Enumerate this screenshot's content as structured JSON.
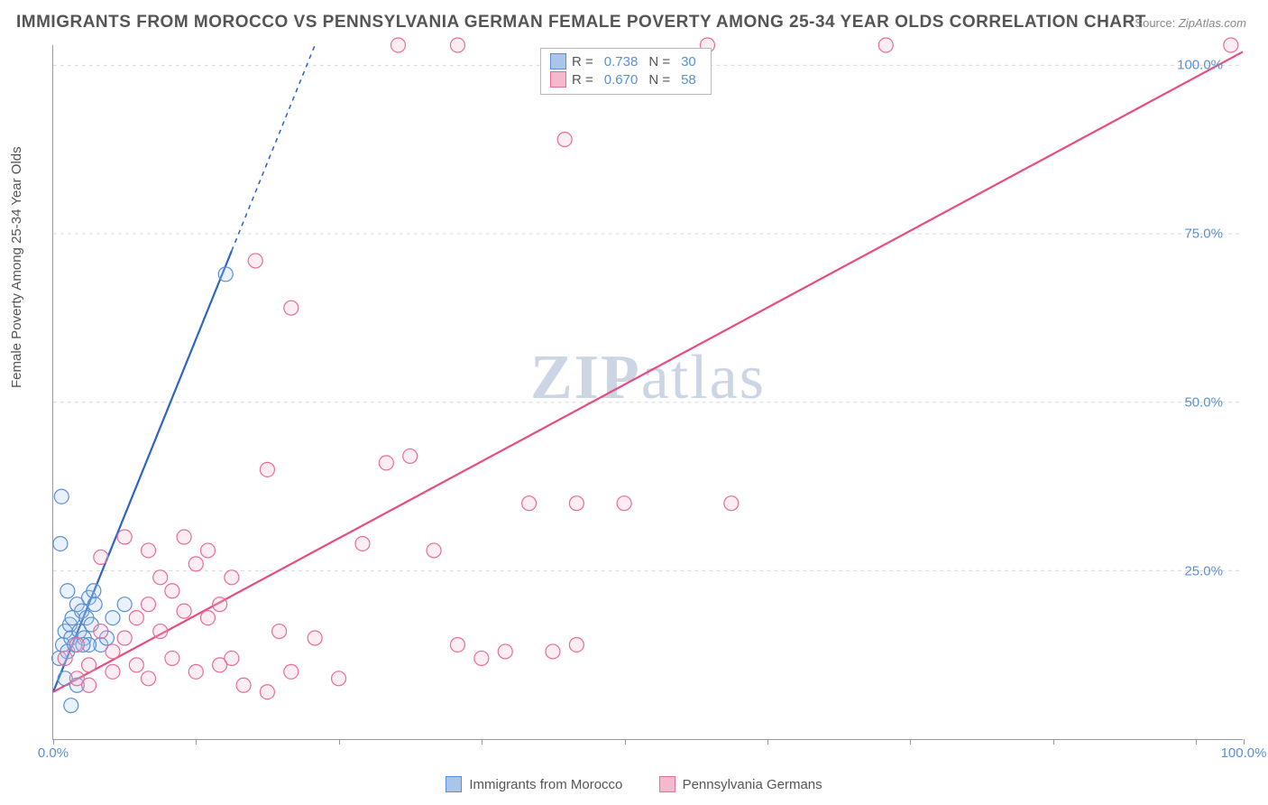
{
  "title": "IMMIGRANTS FROM MOROCCO VS PENNSYLVANIA GERMAN FEMALE POVERTY AMONG 25-34 YEAR OLDS CORRELATION CHART",
  "source_label": "Source:",
  "source_value": "ZipAtlas.com",
  "ylabel": "Female Poverty Among 25-34 Year Olds",
  "watermark_a": "ZIP",
  "watermark_b": "atlas",
  "chart": {
    "type": "scatter",
    "xlim": [
      0,
      100
    ],
    "ylim": [
      0,
      103
    ],
    "x_ticks": [
      0,
      12,
      24,
      36,
      48,
      60,
      72,
      84,
      96,
      100
    ],
    "x_tick_labels": {
      "0": "0.0%",
      "100": "100.0%"
    },
    "y_ticks": [
      25,
      50,
      75,
      100
    ],
    "y_tick_labels": {
      "25": "25.0%",
      "50": "50.0%",
      "75": "75.0%",
      "100": "100.0%"
    },
    "grid_color": "#d8d8d8",
    "background_color": "#ffffff",
    "marker_radius": 8,
    "marker_stroke_width": 1.2,
    "marker_fill_opacity": 0.25,
    "line_width": 2.2,
    "series": [
      {
        "name": "Immigrants from Morocco",
        "color_stroke": "#5a8fd6",
        "color_fill": "#a9c6ea",
        "line_color": "#2b64c4",
        "R_label": "R =",
        "R": "0.738",
        "N_label": "N =",
        "N": "30",
        "trend": {
          "x1": 0,
          "y1": 7,
          "x2": 22,
          "y2": 103,
          "dash_after_x": 15
        },
        "points": [
          [
            0.5,
            12
          ],
          [
            0.8,
            14
          ],
          [
            1.0,
            16
          ],
          [
            1.2,
            13
          ],
          [
            1.4,
            17
          ],
          [
            1.5,
            15
          ],
          [
            1.6,
            18
          ],
          [
            1.8,
            14
          ],
          [
            2.0,
            20
          ],
          [
            2.2,
            16
          ],
          [
            2.4,
            19
          ],
          [
            2.6,
            15
          ],
          [
            2.8,
            18
          ],
          [
            3.0,
            21
          ],
          [
            3.2,
            17
          ],
          [
            3.4,
            22
          ],
          [
            0.7,
            36
          ],
          [
            0.6,
            29
          ],
          [
            1.0,
            9
          ],
          [
            2.0,
            8
          ],
          [
            4.0,
            14
          ],
          [
            5.0,
            18
          ],
          [
            6.0,
            20
          ],
          [
            1.5,
            5
          ],
          [
            3.0,
            14
          ],
          [
            3.5,
            20
          ],
          [
            4.5,
            15
          ],
          [
            1.2,
            22
          ],
          [
            2.5,
            14
          ],
          [
            14.5,
            69
          ]
        ]
      },
      {
        "name": "Pennsylvania Germans",
        "color_stroke": "#e86b98",
        "color_fill": "#f5b8cc",
        "line_color": "#e84b82",
        "R_label": "R =",
        "R": "0.670",
        "N_label": "N =",
        "N": "58",
        "trend": {
          "x1": 0,
          "y1": 7,
          "x2": 100,
          "y2": 102,
          "dash_after_x": 200
        },
        "points": [
          [
            1,
            12
          ],
          [
            2,
            14
          ],
          [
            3,
            11
          ],
          [
            4,
            16
          ],
          [
            5,
            13
          ],
          [
            6,
            15
          ],
          [
            7,
            18
          ],
          [
            8,
            20
          ],
          [
            9,
            16
          ],
          [
            10,
            22
          ],
          [
            11,
            19
          ],
          [
            12,
            26
          ],
          [
            13,
            28
          ],
          [
            14,
            20
          ],
          [
            15,
            24
          ],
          [
            2,
            9
          ],
          [
            3,
            8
          ],
          [
            5,
            10
          ],
          [
            7,
            11
          ],
          [
            8,
            9
          ],
          [
            10,
            12
          ],
          [
            12,
            10
          ],
          [
            14,
            11
          ],
          [
            16,
            8
          ],
          [
            18,
            7
          ],
          [
            20,
            10
          ],
          [
            22,
            15
          ],
          [
            19,
            16
          ],
          [
            24,
            9
          ],
          [
            26,
            29
          ],
          [
            28,
            41
          ],
          [
            30,
            42
          ],
          [
            32,
            28
          ],
          [
            34,
            14
          ],
          [
            36,
            12
          ],
          [
            38,
            13
          ],
          [
            40,
            35
          ],
          [
            42,
            13
          ],
          [
            44,
            14
          ],
          [
            17,
            71
          ],
          [
            18,
            40
          ],
          [
            20,
            64
          ],
          [
            29,
            103
          ],
          [
            34,
            103
          ],
          [
            43,
            89
          ],
          [
            55,
            103
          ],
          [
            57,
            35
          ],
          [
            44,
            35
          ],
          [
            48,
            35
          ],
          [
            70,
            103
          ],
          [
            99,
            103
          ],
          [
            8,
            28
          ],
          [
            6,
            30
          ],
          [
            4,
            27
          ],
          [
            11,
            30
          ],
          [
            9,
            24
          ],
          [
            13,
            18
          ],
          [
            15,
            12
          ]
        ]
      }
    ]
  },
  "bottom_legend": [
    {
      "label": "Immigrants from Morocco",
      "stroke": "#5a8fd6",
      "fill": "#a9c6ea"
    },
    {
      "label": "Pennsylvania Germans",
      "stroke": "#e86b98",
      "fill": "#f5b8cc"
    }
  ]
}
